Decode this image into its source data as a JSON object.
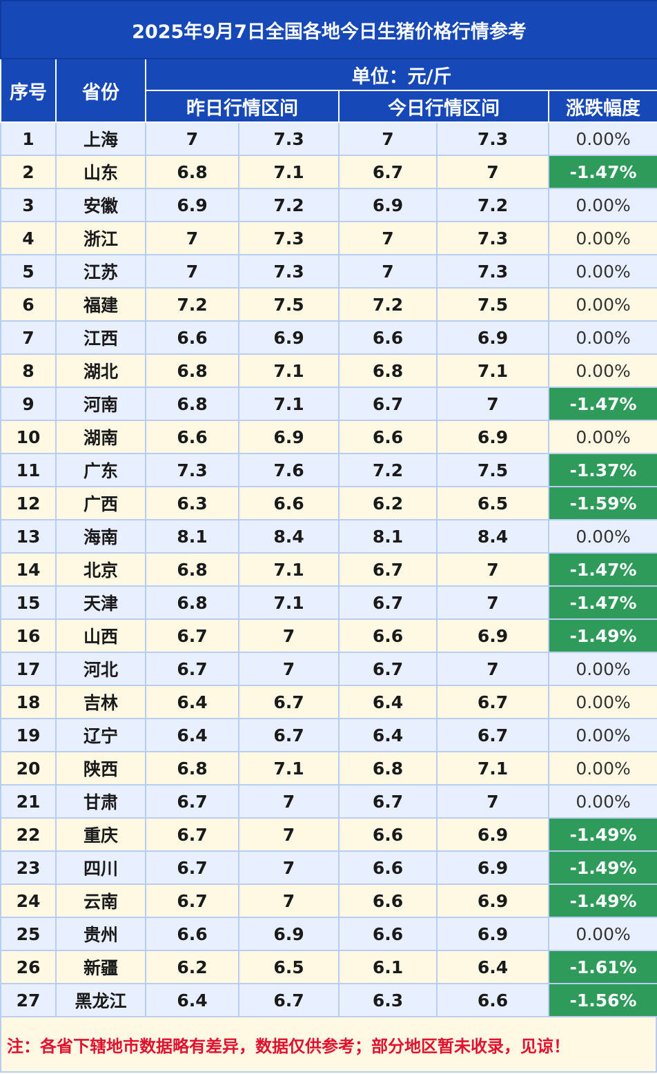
{
  "title": "2025年9月7日全国各地今日生猪价格行情参考",
  "headers": {
    "seq": "序号",
    "province": "省份",
    "unit": "单位：元/斤",
    "yesterday": "昨日行情区间",
    "today": "今日行情区间",
    "change": "涨跌幅度"
  },
  "rows": [
    {
      "seq": "1",
      "province": "上海",
      "y_low": "7",
      "y_high": "7.3",
      "t_low": "7",
      "t_high": "7.3",
      "change": "0.00%",
      "direction": "flat"
    },
    {
      "seq": "2",
      "province": "山东",
      "y_low": "6.8",
      "y_high": "7.1",
      "t_low": "6.7",
      "t_high": "7",
      "change": "-1.47%",
      "direction": "down"
    },
    {
      "seq": "3",
      "province": "安徽",
      "y_low": "6.9",
      "y_high": "7.2",
      "t_low": "6.9",
      "t_high": "7.2",
      "change": "0.00%",
      "direction": "flat"
    },
    {
      "seq": "4",
      "province": "浙江",
      "y_low": "7",
      "y_high": "7.3",
      "t_low": "7",
      "t_high": "7.3",
      "change": "0.00%",
      "direction": "flat"
    },
    {
      "seq": "5",
      "province": "江苏",
      "y_low": "7",
      "y_high": "7.3",
      "t_low": "7",
      "t_high": "7.3",
      "change": "0.00%",
      "direction": "flat"
    },
    {
      "seq": "6",
      "province": "福建",
      "y_low": "7.2",
      "y_high": "7.5",
      "t_low": "7.2",
      "t_high": "7.5",
      "change": "0.00%",
      "direction": "flat"
    },
    {
      "seq": "7",
      "province": "江西",
      "y_low": "6.6",
      "y_high": "6.9",
      "t_low": "6.6",
      "t_high": "6.9",
      "change": "0.00%",
      "direction": "flat"
    },
    {
      "seq": "8",
      "province": "湖北",
      "y_low": "6.8",
      "y_high": "7.1",
      "t_low": "6.8",
      "t_high": "7.1",
      "change": "0.00%",
      "direction": "flat"
    },
    {
      "seq": "9",
      "province": "河南",
      "y_low": "6.8",
      "y_high": "7.1",
      "t_low": "6.7",
      "t_high": "7",
      "change": "-1.47%",
      "direction": "down"
    },
    {
      "seq": "10",
      "province": "湖南",
      "y_low": "6.6",
      "y_high": "6.9",
      "t_low": "6.6",
      "t_high": "6.9",
      "change": "0.00%",
      "direction": "flat"
    },
    {
      "seq": "11",
      "province": "广东",
      "y_low": "7.3",
      "y_high": "7.6",
      "t_low": "7.2",
      "t_high": "7.5",
      "change": "-1.37%",
      "direction": "down"
    },
    {
      "seq": "12",
      "province": "广西",
      "y_low": "6.3",
      "y_high": "6.6",
      "t_low": "6.2",
      "t_high": "6.5",
      "change": "-1.59%",
      "direction": "down"
    },
    {
      "seq": "13",
      "province": "海南",
      "y_low": "8.1",
      "y_high": "8.4",
      "t_low": "8.1",
      "t_high": "8.4",
      "change": "0.00%",
      "direction": "flat"
    },
    {
      "seq": "14",
      "province": "北京",
      "y_low": "6.8",
      "y_high": "7.1",
      "t_low": "6.7",
      "t_high": "7",
      "change": "-1.47%",
      "direction": "down"
    },
    {
      "seq": "15",
      "province": "天津",
      "y_low": "6.8",
      "y_high": "7.1",
      "t_low": "6.7",
      "t_high": "7",
      "change": "-1.47%",
      "direction": "down"
    },
    {
      "seq": "16",
      "province": "山西",
      "y_low": "6.7",
      "y_high": "7",
      "t_low": "6.6",
      "t_high": "6.9",
      "change": "-1.49%",
      "direction": "down"
    },
    {
      "seq": "17",
      "province": "河北",
      "y_low": "6.7",
      "y_high": "7",
      "t_low": "6.7",
      "t_high": "7",
      "change": "0.00%",
      "direction": "flat"
    },
    {
      "seq": "18",
      "province": "吉林",
      "y_low": "6.4",
      "y_high": "6.7",
      "t_low": "6.4",
      "t_high": "6.7",
      "change": "0.00%",
      "direction": "flat"
    },
    {
      "seq": "19",
      "province": "辽宁",
      "y_low": "6.4",
      "y_high": "6.7",
      "t_low": "6.4",
      "t_high": "6.7",
      "change": "0.00%",
      "direction": "flat"
    },
    {
      "seq": "20",
      "province": "陕西",
      "y_low": "6.8",
      "y_high": "7.1",
      "t_low": "6.8",
      "t_high": "7.1",
      "change": "0.00%",
      "direction": "flat"
    },
    {
      "seq": "21",
      "province": "甘肃",
      "y_low": "6.7",
      "y_high": "7",
      "t_low": "6.7",
      "t_high": "7",
      "change": "0.00%",
      "direction": "flat"
    },
    {
      "seq": "22",
      "province": "重庆",
      "y_low": "6.7",
      "y_high": "7",
      "t_low": "6.6",
      "t_high": "6.9",
      "change": "-1.49%",
      "direction": "down"
    },
    {
      "seq": "23",
      "province": "四川",
      "y_low": "6.7",
      "y_high": "7",
      "t_low": "6.6",
      "t_high": "6.9",
      "change": "-1.49%",
      "direction": "down"
    },
    {
      "seq": "24",
      "province": "云南",
      "y_low": "6.7",
      "y_high": "7",
      "t_low": "6.6",
      "t_high": "6.9",
      "change": "-1.49%",
      "direction": "down"
    },
    {
      "seq": "25",
      "province": "贵州",
      "y_low": "6.6",
      "y_high": "6.9",
      "t_low": "6.6",
      "t_high": "6.9",
      "change": "0.00%",
      "direction": "flat"
    },
    {
      "seq": "26",
      "province": "新疆",
      "y_low": "6.2",
      "y_high": "6.5",
      "t_low": "6.1",
      "t_high": "6.4",
      "change": "-1.61%",
      "direction": "down"
    },
    {
      "seq": "27",
      "province": "黑龙江",
      "y_low": "6.4",
      "y_high": "6.7",
      "t_low": "6.3",
      "t_high": "6.6",
      "change": "-1.56%",
      "direction": "down"
    }
  ],
  "note": "注：各省下辖地市数据略有差异，数据仅供参考；部分地区暂未收录，见谅！",
  "colors": {
    "header_blue": "#1748b8",
    "row_blue": "#e8efff",
    "row_cream": "#fff8e3",
    "down_green": "#2e9b5a",
    "note_red": "#e1102d"
  }
}
